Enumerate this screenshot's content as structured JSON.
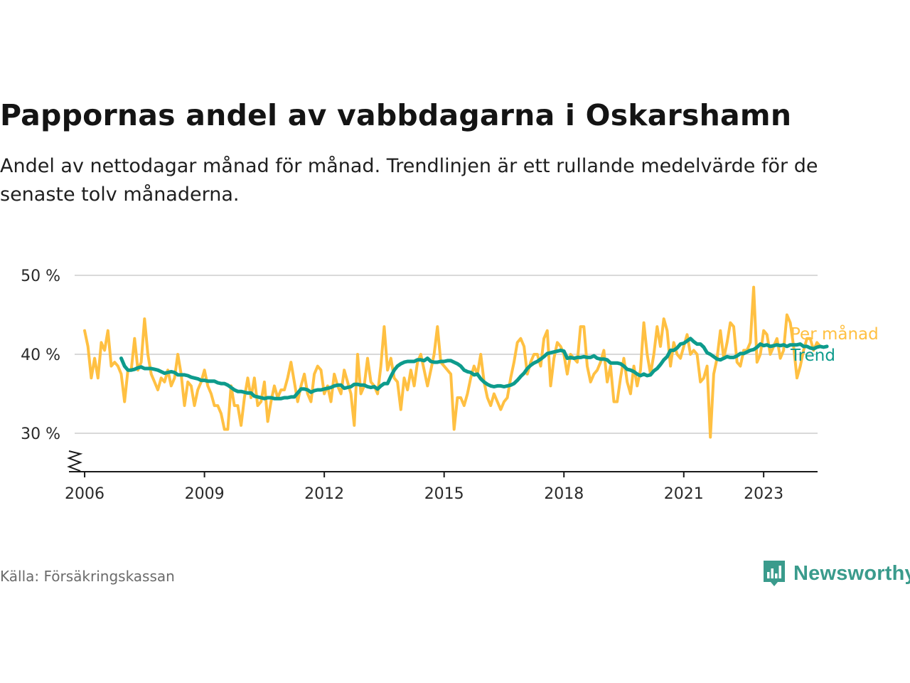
{
  "title": "Pappornas andel av vabbdagarna i Oskarshamn",
  "subtitle": "Andel av nettodagar månad för månad. Trendlinjen är ett rullande medelvärde för de senaste tolv månaderna.",
  "source": "Källa: Försäkringskassan",
  "brand": {
    "name": "Newsworthy",
    "icon": "newsworthy-logo-icon",
    "color": "#3a9b8c"
  },
  "chart_data": {
    "type": "line",
    "title": "Pappornas andel av vabbdagarna i Oskarshamn",
    "xlabel": "",
    "ylabel": "",
    "x_ticks": [
      "2006",
      "2009",
      "2012",
      "2015",
      "2018",
      "2021",
      "2023"
    ],
    "y_ticks": [
      "30 %",
      "40 %",
      "50 %"
    ],
    "xlim": [
      2005.75,
      2024.35
    ],
    "ylim": [
      25,
      50
    ],
    "y_axis_break": true,
    "grid": true,
    "legend": "right-end labels",
    "series": [
      {
        "name": "Per månad",
        "color": "#ffc042",
        "start": "2006-01",
        "values": [
          43,
          41,
          37,
          39.5,
          37,
          41.5,
          40.5,
          43,
          38.5,
          39,
          38.5,
          37.5,
          34,
          38,
          38,
          42,
          38,
          39,
          44.5,
          40,
          37.5,
          36.5,
          35.5,
          37,
          36.5,
          38,
          36,
          37,
          40,
          37.5,
          33.5,
          36.5,
          36,
          33.5,
          35.5,
          36.5,
          38,
          36,
          35,
          33.5,
          33.5,
          32.5,
          30.5,
          30.5,
          36,
          33.5,
          33.5,
          31,
          34.5,
          37,
          34.5,
          37,
          33.5,
          34,
          36.5,
          31.5,
          34,
          36,
          34.5,
          35.5,
          35.5,
          37,
          39,
          36.5,
          34,
          36,
          37.5,
          35,
          34,
          37.5,
          38.5,
          38,
          35,
          36,
          34,
          37.5,
          36,
          35,
          38,
          36.5,
          35,
          31,
          40,
          35,
          36,
          39.5,
          36.5,
          36,
          35,
          38.5,
          43.5,
          38,
          39.5,
          37,
          36.5,
          33,
          37,
          35.5,
          38,
          36,
          39,
          40,
          38,
          36,
          38,
          40,
          43.5,
          39,
          38.5,
          38,
          37.5,
          30.5,
          34.5,
          34.5,
          33.5,
          35,
          37,
          38.5,
          37.5,
          40,
          36.5,
          34.5,
          33.5,
          35,
          34,
          33,
          34,
          34.5,
          37,
          39,
          41.5,
          42,
          41,
          37.5,
          39,
          40,
          40,
          38.5,
          42,
          43,
          36,
          39.5,
          41.5,
          41,
          40,
          37.5,
          40,
          39.5,
          39,
          43.5,
          43.5,
          38.5,
          36.5,
          37.5,
          38,
          39,
          40.5,
          36.5,
          38.5,
          34,
          34,
          37,
          39.5,
          36.5,
          35,
          38.5,
          36,
          38,
          44,
          40,
          37.5,
          40,
          43.5,
          41,
          44.5,
          43,
          38.5,
          41.5,
          40,
          39.5,
          41,
          42.5,
          40,
          40.5,
          40,
          36.5,
          37,
          38.5,
          29.5,
          37.5,
          39.5,
          43,
          39.5,
          41.5,
          44,
          43.5,
          39,
          38.5,
          40.5,
          40.5,
          41.5,
          48.5,
          39,
          40,
          43,
          42.5,
          40,
          41,
          42,
          39.5,
          40.5,
          45,
          44,
          41,
          37,
          38.5,
          40.5,
          42,
          42,
          40.5,
          41.5,
          41
        ]
      },
      {
        "name": "Trend",
        "color": "#0d9b8c",
        "start": "2006-12",
        "values": [
          39.5,
          38.5,
          38,
          38,
          38.1,
          38.3,
          38.4,
          38.2,
          38.2,
          38.2,
          38.1,
          38,
          37.8,
          37.6,
          37.7,
          37.8,
          37.7,
          37.4,
          37.4,
          37.4,
          37.3,
          37.1,
          37,
          36.9,
          36.7,
          36.7,
          36.6,
          36.6,
          36.6,
          36.4,
          36.3,
          36.3,
          36.1,
          35.8,
          35.5,
          35.3,
          35.3,
          35.2,
          35.1,
          35.1,
          34.7,
          34.6,
          34.5,
          34.4,
          34.5,
          34.5,
          34.4,
          34.4,
          34.4,
          34.5,
          34.5,
          34.6,
          34.6,
          35.1,
          35.6,
          35.6,
          35.5,
          35.2,
          35.4,
          35.5,
          35.5,
          35.6,
          35.7,
          35.8,
          36,
          36.1,
          36.1,
          35.7,
          35.8,
          35.9,
          36.2,
          36.2,
          36.1,
          36.1,
          35.9,
          35.8,
          35.9,
          35.6,
          36,
          36.3,
          36.3,
          37.2,
          38,
          38.5,
          38.8,
          39,
          39.1,
          39.1,
          39.1,
          39.3,
          39.3,
          39.2,
          39.5,
          39.1,
          39,
          39,
          39.1,
          39.1,
          39.2,
          39.2,
          39,
          38.8,
          38.5,
          38,
          37.8,
          37.7,
          37.4,
          37.5,
          36.9,
          36.5,
          36.2,
          36,
          35.9,
          36,
          36,
          35.9,
          36,
          36.1,
          36.3,
          36.7,
          37.2,
          37.6,
          38.2,
          38.6,
          38.9,
          39.1,
          39.4,
          39.7,
          40.1,
          40.2,
          40.3,
          40.4,
          40.5,
          40.4,
          39.5,
          39.6,
          39.5,
          39.6,
          39.6,
          39.7,
          39.6,
          39.6,
          39.8,
          39.5,
          39.4,
          39.4,
          39.3,
          38.9,
          38.9,
          38.9,
          38.8,
          38.5,
          38.1,
          38,
          37.8,
          37.5,
          37.3,
          37.5,
          37.3,
          37.4,
          37.9,
          38.2,
          38.7,
          39.3,
          39.7,
          40.5,
          40.5,
          40.8,
          41.3,
          41.4,
          41.7,
          42,
          41.6,
          41.3,
          41.3,
          40.9,
          40.2,
          40,
          39.7,
          39.4,
          39.3,
          39.5,
          39.7,
          39.6,
          39.6,
          39.8,
          40.1,
          40.1,
          40.3,
          40.5,
          40.6,
          40.9,
          41.3,
          41.1,
          41.2,
          41,
          41.1,
          41.2,
          41.1,
          41.2,
          41,
          41.2,
          41.2,
          41.2,
          41.3,
          41,
          41,
          40.8,
          40.7,
          40.9,
          41,
          40.9,
          41
        ]
      }
    ]
  }
}
